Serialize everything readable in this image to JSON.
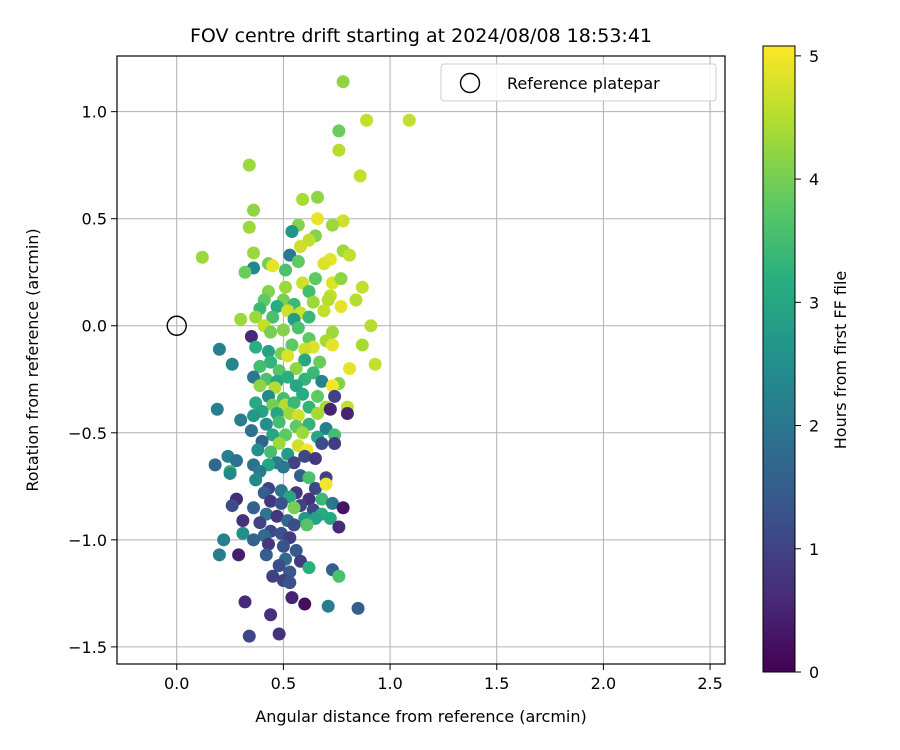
{
  "chart_data": {
    "type": "scatter",
    "title": "FOV centre drift starting at 2024/08/08 18:53:41",
    "xlabel": "Angular distance from reference (arcmin)",
    "ylabel": "Rotation from reference (arcmin)",
    "xlim": [
      -0.28,
      2.57
    ],
    "ylim": [
      -1.58,
      1.26
    ],
    "xticks": [
      0.0,
      0.5,
      1.0,
      1.5,
      2.0,
      2.5
    ],
    "yticks": [
      -1.5,
      -1.0,
      -0.5,
      0.0,
      0.5,
      1.0
    ],
    "xtick_labels": [
      "0.0",
      "0.5",
      "1.0",
      "1.5",
      "2.0",
      "2.5"
    ],
    "ytick_labels": [
      "−1.5",
      "−1.0",
      "−0.5",
      "0.0",
      "0.5",
      "1.0"
    ],
    "grid": true,
    "colormap": "viridis",
    "colorbar": {
      "label": "Hours from first FF file",
      "range": [
        0,
        5.08
      ],
      "ticks": [
        0,
        1,
        2,
        3,
        4,
        5
      ],
      "tick_labels": [
        "0",
        "1",
        "2",
        "3",
        "4",
        "5"
      ]
    },
    "legend": {
      "placement": "top-right",
      "entries": [
        {
          "label": "Reference platepar",
          "marker": "open-circle"
        }
      ]
    },
    "reference_point": {
      "x": 0.0,
      "y": 0.0
    },
    "point_fields": [
      "x",
      "y",
      "hours"
    ],
    "points": [
      [
        0.78,
        1.14,
        4.2
      ],
      [
        0.76,
        0.91,
        3.9
      ],
      [
        0.89,
        0.96,
        4.6
      ],
      [
        1.09,
        0.96,
        4.6
      ],
      [
        0.76,
        0.82,
        4.5
      ],
      [
        0.34,
        0.75,
        4.3
      ],
      [
        0.86,
        0.7,
        4.6
      ],
      [
        0.66,
        0.6,
        4.2
      ],
      [
        0.59,
        0.59,
        4.4
      ],
      [
        0.36,
        0.54,
        4.2
      ],
      [
        0.66,
        0.5,
        4.9
      ],
      [
        0.78,
        0.49,
        4.7
      ],
      [
        0.57,
        0.47,
        4.1
      ],
      [
        0.73,
        0.47,
        4.3
      ],
      [
        0.34,
        0.46,
        4.3
      ],
      [
        0.54,
        0.44,
        2.6
      ],
      [
        0.65,
        0.42,
        4.1
      ],
      [
        0.62,
        0.4,
        4.6
      ],
      [
        0.58,
        0.37,
        4.7
      ],
      [
        0.12,
        0.32,
        4.3
      ],
      [
        0.36,
        0.34,
        4.3
      ],
      [
        0.53,
        0.33,
        2.0
      ],
      [
        0.72,
        0.31,
        4.9
      ],
      [
        0.78,
        0.35,
        4.3
      ],
      [
        0.81,
        0.33,
        4.6
      ],
      [
        0.57,
        0.3,
        3.8
      ],
      [
        0.43,
        0.29,
        4.0
      ],
      [
        0.45,
        0.28,
        4.9
      ],
      [
        0.69,
        0.29,
        4.8
      ],
      [
        0.36,
        0.27,
        2.3
      ],
      [
        0.32,
        0.25,
        3.9
      ],
      [
        0.51,
        0.26,
        3.6
      ],
      [
        0.65,
        0.22,
        3.8
      ],
      [
        0.59,
        0.2,
        4.7
      ],
      [
        0.73,
        0.2,
        4.8
      ],
      [
        0.77,
        0.22,
        4.2
      ],
      [
        0.87,
        0.18,
        4.6
      ],
      [
        0.43,
        0.16,
        4.1
      ],
      [
        0.51,
        0.18,
        4.3
      ],
      [
        0.62,
        0.16,
        3.5
      ],
      [
        0.72,
        0.14,
        4.6
      ],
      [
        0.41,
        0.12,
        3.8
      ],
      [
        0.5,
        0.12,
        4.0
      ],
      [
        0.55,
        0.1,
        3.4
      ],
      [
        0.64,
        0.11,
        4.3
      ],
      [
        0.71,
        0.12,
        4.5
      ],
      [
        0.84,
        0.12,
        4.5
      ],
      [
        0.39,
        0.08,
        3.4
      ],
      [
        0.47,
        0.09,
        3.1
      ],
      [
        0.52,
        0.07,
        4.7
      ],
      [
        0.58,
        0.06,
        4.7
      ],
      [
        0.69,
        0.07,
        4.6
      ],
      [
        0.77,
        0.09,
        4.9
      ],
      [
        0.37,
        0.04,
        4.3
      ],
      [
        0.3,
        0.03,
        4.3
      ],
      [
        0.45,
        0.04,
        3.6
      ],
      [
        0.55,
        0.03,
        2.8
      ],
      [
        0.62,
        0.04,
        3.4
      ],
      [
        0.41,
        0.0,
        4.6
      ],
      [
        0.5,
        -0.02,
        4.1
      ],
      [
        0.57,
        -0.01,
        3.6
      ],
      [
        0.73,
        -0.03,
        4.3
      ],
      [
        0.91,
        0.0,
        4.5
      ],
      [
        0.44,
        -0.03,
        4.0
      ],
      [
        0.35,
        -0.05,
        0.6
      ],
      [
        0.62,
        -0.06,
        3.8
      ],
      [
        0.7,
        -0.07,
        4.4
      ],
      [
        0.54,
        -0.09,
        3.8
      ],
      [
        0.64,
        -0.1,
        4.8
      ],
      [
        0.6,
        -0.11,
        4.7
      ],
      [
        0.73,
        -0.09,
        4.9
      ],
      [
        0.87,
        -0.09,
        4.4
      ],
      [
        0.2,
        -0.11,
        2.2
      ],
      [
        0.37,
        -0.1,
        3.2
      ],
      [
        0.43,
        -0.12,
        2.9
      ],
      [
        0.49,
        -0.13,
        4.0
      ],
      [
        0.52,
        -0.14,
        4.8
      ],
      [
        0.44,
        -0.17,
        3.3
      ],
      [
        0.6,
        -0.16,
        3.0
      ],
      [
        0.67,
        -0.17,
        3.9
      ],
      [
        0.26,
        -0.18,
        2.3
      ],
      [
        0.39,
        -0.19,
        3.5
      ],
      [
        0.48,
        -0.21,
        3.7
      ],
      [
        0.56,
        -0.2,
        4.2
      ],
      [
        0.64,
        -0.22,
        3.4
      ],
      [
        0.81,
        -0.2,
        4.9
      ],
      [
        0.93,
        -0.18,
        4.6
      ],
      [
        0.36,
        -0.24,
        2.0
      ],
      [
        0.42,
        -0.25,
        3.6
      ],
      [
        0.47,
        -0.26,
        3.0
      ],
      [
        0.52,
        -0.24,
        3.2
      ],
      [
        0.6,
        -0.25,
        3.3
      ],
      [
        0.68,
        -0.26,
        2.3
      ],
      [
        0.76,
        -0.27,
        4.1
      ],
      [
        0.39,
        -0.28,
        4.2
      ],
      [
        0.46,
        -0.29,
        4.5
      ],
      [
        0.56,
        -0.28,
        3.0
      ],
      [
        0.73,
        -0.28,
        5.0
      ],
      [
        0.43,
        -0.33,
        2.4
      ],
      [
        0.5,
        -0.34,
        3.5
      ],
      [
        0.59,
        -0.32,
        3.1
      ],
      [
        0.66,
        -0.33,
        3.8
      ],
      [
        0.74,
        -0.33,
        1.0
      ],
      [
        0.37,
        -0.36,
        3.1
      ],
      [
        0.45,
        -0.37,
        4.0
      ],
      [
        0.51,
        -0.37,
        4.5
      ],
      [
        0.55,
        -0.36,
        3.4
      ],
      [
        0.62,
        -0.38,
        3.3
      ],
      [
        0.7,
        -0.38,
        4.4
      ],
      [
        0.8,
        -0.38,
        4.6
      ],
      [
        0.19,
        -0.39,
        2.2
      ],
      [
        0.4,
        -0.4,
        2.9
      ],
      [
        0.47,
        -0.41,
        3.0
      ],
      [
        0.53,
        -0.41,
        4.3
      ],
      [
        0.57,
        -0.42,
        4.7
      ],
      [
        0.66,
        -0.41,
        4.4
      ],
      [
        0.72,
        -0.39,
        0.5
      ],
      [
        0.8,
        -0.41,
        0.5
      ],
      [
        0.3,
        -0.44,
        2.1
      ],
      [
        0.36,
        -0.42,
        2.7
      ],
      [
        0.42,
        -0.46,
        2.5
      ],
      [
        0.48,
        -0.45,
        3.5
      ],
      [
        0.56,
        -0.47,
        3.8
      ],
      [
        0.62,
        -0.46,
        3.3
      ],
      [
        0.7,
        -0.48,
        2.2
      ],
      [
        0.35,
        -0.49,
        1.9
      ],
      [
        0.45,
        -0.51,
        3.0
      ],
      [
        0.51,
        -0.51,
        3.8
      ],
      [
        0.59,
        -0.5,
        4.3
      ],
      [
        0.66,
        -0.52,
        3.0
      ],
      [
        0.74,
        -0.51,
        3.5
      ],
      [
        0.4,
        -0.54,
        1.6
      ],
      [
        0.48,
        -0.55,
        4.3
      ],
      [
        0.57,
        -0.56,
        4.7
      ],
      [
        0.61,
        -0.58,
        5.0
      ],
      [
        0.68,
        -0.55,
        1.2
      ],
      [
        0.74,
        -0.55,
        0.9
      ],
      [
        0.38,
        -0.58,
        2.5
      ],
      [
        0.44,
        -0.59,
        3.5
      ],
      [
        0.52,
        -0.6,
        2.8
      ],
      [
        0.6,
        -0.61,
        1.1
      ],
      [
        0.65,
        -0.62,
        0.8
      ],
      [
        0.24,
        -0.61,
        2.2
      ],
      [
        0.28,
        -0.63,
        1.9
      ],
      [
        0.47,
        -0.64,
        2.1
      ],
      [
        0.55,
        -0.64,
        1.0
      ],
      [
        0.43,
        -0.65,
        3.0
      ],
      [
        0.18,
        -0.65,
        1.7
      ],
      [
        0.25,
        -0.68,
        3.5
      ],
      [
        0.36,
        -0.65,
        1.9
      ],
      [
        0.39,
        -0.68,
        2.1
      ],
      [
        0.5,
        -0.66,
        2.0
      ],
      [
        0.58,
        -0.7,
        1.6
      ],
      [
        0.7,
        -0.71,
        1.0
      ],
      [
        0.62,
        -0.71,
        3.6
      ],
      [
        0.37,
        -0.72,
        2.4
      ],
      [
        0.25,
        -0.69,
        2.4
      ],
      [
        0.43,
        -0.76,
        1.0
      ],
      [
        0.49,
        -0.77,
        2.0
      ],
      [
        0.56,
        -0.78,
        0.8
      ],
      [
        0.65,
        -0.76,
        1.1
      ],
      [
        0.7,
        -0.74,
        5.0
      ],
      [
        0.41,
        -0.78,
        1.5
      ],
      [
        0.53,
        -0.8,
        3.0
      ],
      [
        0.62,
        -0.81,
        0.7
      ],
      [
        0.68,
        -0.81,
        3.4
      ],
      [
        0.28,
        -0.81,
        0.6
      ],
      [
        0.44,
        -0.82,
        0.8
      ],
      [
        0.49,
        -0.83,
        1.3
      ],
      [
        0.58,
        -0.84,
        1.0
      ],
      [
        0.73,
        -0.83,
        2.0
      ],
      [
        0.26,
        -0.84,
        1.2
      ],
      [
        0.36,
        -0.85,
        1.6
      ],
      [
        0.55,
        -0.85,
        4.0
      ],
      [
        0.64,
        -0.86,
        1.1
      ],
      [
        0.68,
        -0.88,
        3.1
      ],
      [
        0.78,
        -0.85,
        0.3
      ],
      [
        0.42,
        -0.88,
        2.0
      ],
      [
        0.47,
        -0.89,
        0.8
      ],
      [
        0.52,
        -0.91,
        1.7
      ],
      [
        0.6,
        -0.9,
        2.7
      ],
      [
        0.65,
        -0.9,
        2.9
      ],
      [
        0.72,
        -0.9,
        3.0
      ],
      [
        0.31,
        -0.91,
        0.7
      ],
      [
        0.39,
        -0.92,
        1.0
      ],
      [
        0.55,
        -0.93,
        1.2
      ],
      [
        0.61,
        -0.93,
        3.7
      ],
      [
        0.76,
        -0.94,
        0.6
      ],
      [
        0.44,
        -0.96,
        1.1
      ],
      [
        0.49,
        -0.97,
        1.3
      ],
      [
        0.31,
        -0.97,
        2.5
      ],
      [
        0.41,
        -0.98,
        1.8
      ],
      [
        0.53,
        -0.99,
        0.9
      ],
      [
        0.36,
        -1.0,
        1.6
      ],
      [
        0.22,
        -1.0,
        2.2
      ],
      [
        0.43,
        -1.02,
        0.8
      ],
      [
        0.5,
        -1.03,
        1.3
      ],
      [
        0.56,
        -1.05,
        1.4
      ],
      [
        0.29,
        -1.07,
        0.4
      ],
      [
        0.2,
        -1.07,
        2.1
      ],
      [
        0.42,
        -1.07,
        1.5
      ],
      [
        0.51,
        -1.09,
        1.7
      ],
      [
        0.58,
        -1.1,
        0.9
      ],
      [
        0.48,
        -1.12,
        1.2
      ],
      [
        0.62,
        -1.13,
        3.2
      ],
      [
        0.73,
        -1.14,
        1.5
      ],
      [
        0.53,
        -1.15,
        1.4
      ],
      [
        0.76,
        -1.17,
        3.6
      ],
      [
        0.45,
        -1.17,
        1.0
      ],
      [
        0.5,
        -1.19,
        1.0
      ],
      [
        0.53,
        -1.2,
        1.3
      ],
      [
        0.32,
        -1.29,
        0.6
      ],
      [
        0.54,
        -1.27,
        0.5
      ],
      [
        0.6,
        -1.3,
        0.2
      ],
      [
        0.71,
        -1.31,
        2.1
      ],
      [
        0.85,
        -1.32,
        1.5
      ],
      [
        0.44,
        -1.35,
        0.7
      ],
      [
        0.34,
        -1.45,
        1.1
      ],
      [
        0.48,
        -1.44,
        0.7
      ]
    ]
  }
}
